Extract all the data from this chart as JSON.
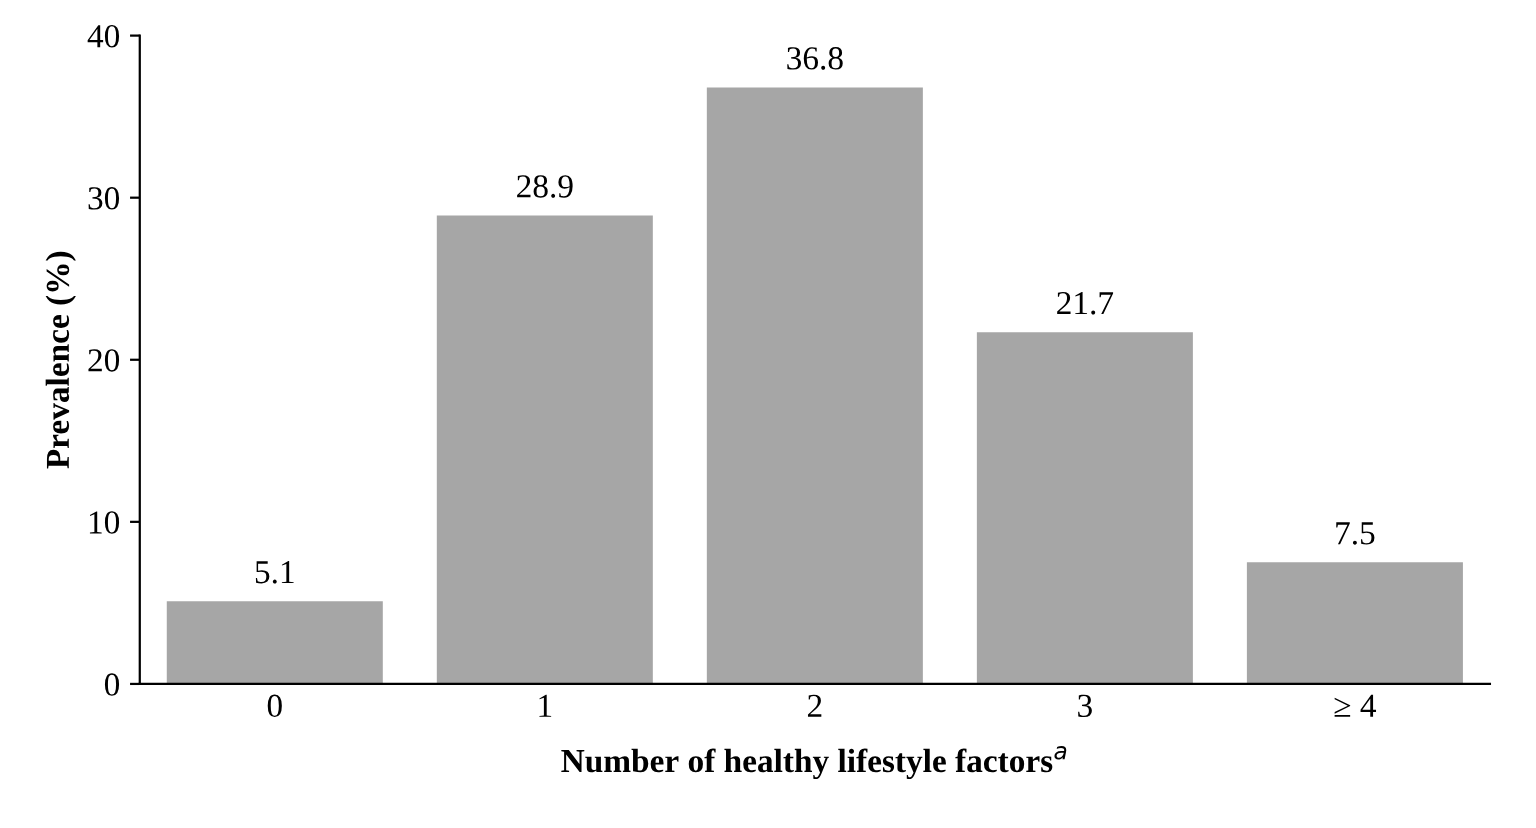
{
  "chart_data": {
    "type": "bar",
    "xlabel": "Number of healthy lifestyle factors$^{a}$",
    "ylabel": "Prevalence (%)",
    "categories": [
      "0",
      "1",
      "2",
      "3",
      "≥ 4"
    ],
    "values": [
      5.1,
      28.9,
      36.8,
      21.7,
      7.5
    ],
    "color": "#a6a6a6",
    "ylim": [
      0,
      40
    ],
    "yticks": [
      0,
      10,
      20,
      30,
      40
    ],
    "data_labels": true,
    "grid": false,
    "legend": false
  }
}
